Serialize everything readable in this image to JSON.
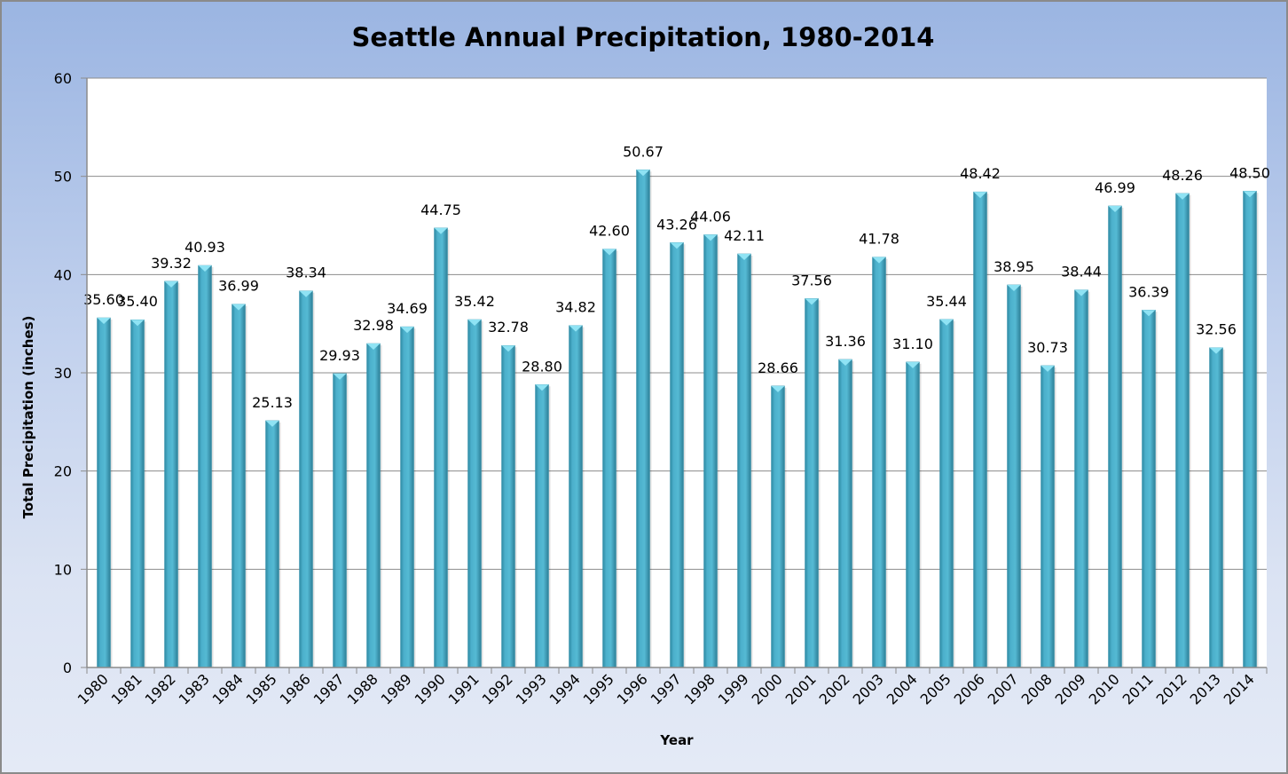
{
  "chart_data": {
    "type": "bar",
    "title": "Seattle Annual Precipitation, 1980-2014",
    "xlabel": "Year",
    "ylabel": "Total Precipitation (inches)",
    "ylim": [
      0,
      60
    ],
    "yticks": [
      "0",
      "10",
      "20",
      "30",
      "40",
      "50",
      "60"
    ],
    "grid": true,
    "legend": "none",
    "categories": [
      "1980",
      "1981",
      "1982",
      "1983",
      "1984",
      "1985",
      "1986",
      "1987",
      "1988",
      "1989",
      "1990",
      "1991",
      "1992",
      "1993",
      "1994",
      "1995",
      "1996",
      "1997",
      "1998",
      "1999",
      "2000",
      "2001",
      "2002",
      "2003",
      "2004",
      "2005",
      "2006",
      "2007",
      "2008",
      "2009",
      "2010",
      "2011",
      "2012",
      "2013",
      "2014"
    ],
    "values": [
      35.6,
      35.4,
      39.32,
      40.93,
      36.99,
      25.13,
      38.34,
      29.93,
      32.98,
      34.69,
      44.75,
      35.42,
      32.78,
      28.8,
      34.82,
      42.6,
      50.67,
      43.26,
      44.06,
      42.11,
      28.66,
      37.56,
      31.36,
      41.78,
      31.1,
      35.44,
      48.42,
      38.95,
      30.73,
      38.44,
      46.99,
      36.39,
      48.26,
      32.56,
      48.5
    ],
    "value_labels": [
      "35.60",
      "35.40",
      "39.32",
      "40.93",
      "36.99",
      "25.13",
      "38.34",
      "29.93",
      "32.98",
      "34.69",
      "44.75",
      "35.42",
      "32.78",
      "28.80",
      "34.82",
      "42.60",
      "50.67",
      "43.26",
      "44.06",
      "42.11",
      "28.66",
      "37.56",
      "31.36",
      "41.78",
      "31.10",
      "35.44",
      "48.42",
      "38.95",
      "30.73",
      "38.44",
      "46.99",
      "36.39",
      "48.26",
      "32.56",
      "48.50"
    ],
    "bar_color": "#4bacc6"
  }
}
